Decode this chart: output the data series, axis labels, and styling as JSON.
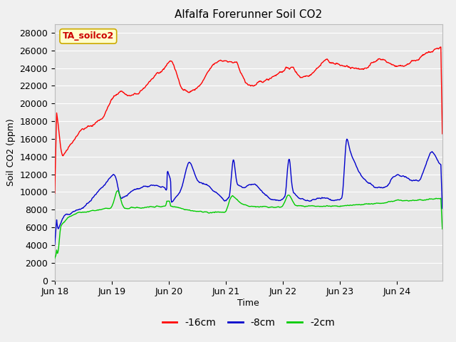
{
  "title": "Alfalfa Forerunner Soil CO2",
  "xlabel": "Time",
  "ylabel": "Soil CO2 (ppm)",
  "annotation": "TA_soilco2",
  "ylim": [
    0,
    29000
  ],
  "yticks": [
    0,
    2000,
    4000,
    6000,
    8000,
    10000,
    12000,
    14000,
    16000,
    18000,
    20000,
    22000,
    24000,
    26000,
    28000
  ],
  "xtick_labels": [
    "Jun 18",
    "Jun 19",
    "Jun 20",
    "Jun 21",
    "Jun 22",
    "Jun 23",
    "Jun 24"
  ],
  "xtick_positions": [
    0,
    1,
    2,
    3,
    4,
    5,
    6
  ],
  "xlim": [
    0,
    6.8
  ],
  "line_colors": {
    "neg16": "#ff0000",
    "neg8": "#0000cc",
    "neg2": "#00cc00"
  },
  "legend_labels": [
    "-16cm",
    "-8cm",
    "-2cm"
  ],
  "fig_bg": "#f0f0f0",
  "plot_bg": "#e8e8e8",
  "grid_color": "#ffffff",
  "annotation_bg": "#ffffcc",
  "annotation_border": "#ccaa00",
  "annotation_color": "#cc0000"
}
